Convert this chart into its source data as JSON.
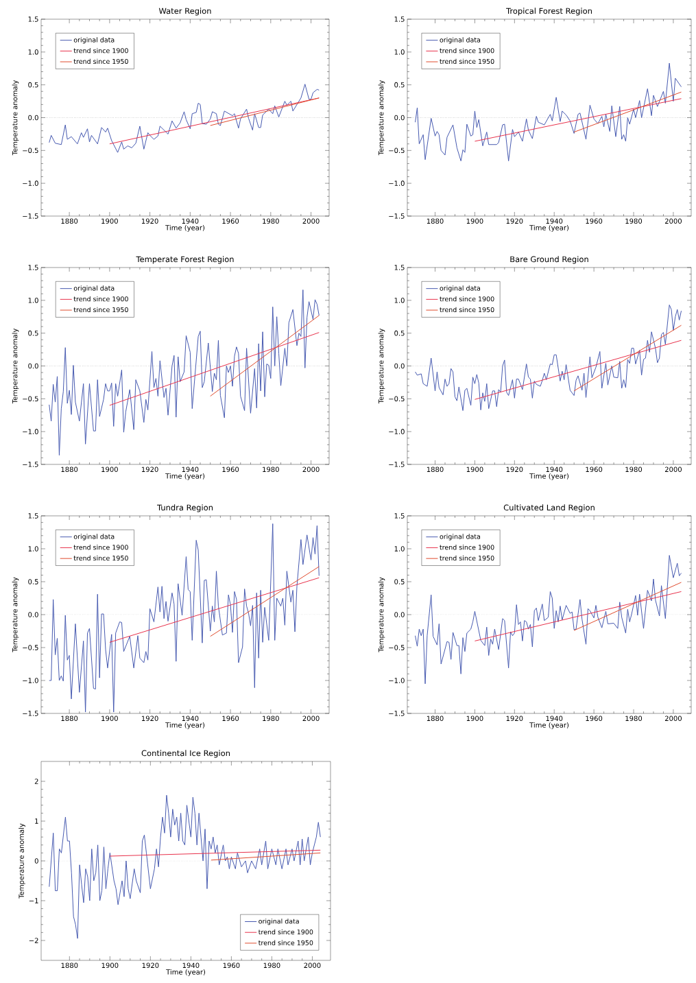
{
  "chart_data": [
    {
      "type": "line",
      "title": "Water Region",
      "xlabel": "Time (year)",
      "ylabel": "Temperature anomaly",
      "xlim": [
        1866,
        2009
      ],
      "ylim": [
        -1.5,
        1.5
      ],
      "xticks": [
        1880,
        1900,
        1920,
        1940,
        1960,
        1980,
        2000
      ],
      "yticks": [
        {
          "value": -1.5,
          "label": "−1.5"
        },
        {
          "value": -1,
          "label": "−1.0"
        },
        {
          "value": -0.5,
          "label": "−0.5"
        },
        {
          "value": 0,
          "label": "0.0"
        },
        {
          "value": 0.5,
          "label": "0.5"
        },
        {
          "value": 1,
          "label": "1.0"
        },
        {
          "value": 1.5,
          "label": "1.5"
        }
      ],
      "legend": "top left",
      "ref_lines": [
        {
          "axis": "y",
          "value": 0,
          "line_style": "dotted"
        }
      ],
      "series": [
        {
          "name": "original data",
          "color": "#4659b0",
          "x": [
            1870,
            1871,
            1873,
            1876,
            1878,
            1879,
            1881,
            1884,
            1886,
            1887,
            1889,
            1890,
            1891,
            1894,
            1896,
            1898,
            1899,
            1901,
            1904,
            1906,
            1907,
            1909,
            1911,
            1913,
            1915,
            1917,
            1919,
            1920,
            1922,
            1924,
            1925,
            1929,
            1931,
            1933,
            1935,
            1937,
            1938,
            1940,
            1941,
            1943,
            1944,
            1945,
            1946,
            1948,
            1950,
            1951,
            1953,
            1954,
            1955,
            1957,
            1961,
            1962,
            1964,
            1965,
            1968,
            1969,
            1971,
            1972,
            1974,
            1975,
            1976,
            1979,
            1981,
            1982,
            1984,
            1987,
            1988,
            1990,
            1991,
            1995,
            1997,
            1999,
            2000,
            2001,
            2003,
            2004
          ],
          "values": [
            -0.38,
            -0.27,
            -0.39,
            -0.41,
            -0.11,
            -0.33,
            -0.29,
            -0.4,
            -0.23,
            -0.3,
            -0.17,
            -0.37,
            -0.27,
            -0.4,
            -0.15,
            -0.22,
            -0.16,
            -0.35,
            -0.53,
            -0.37,
            -0.48,
            -0.43,
            -0.46,
            -0.39,
            -0.13,
            -0.48,
            -0.23,
            -0.27,
            -0.33,
            -0.28,
            -0.13,
            -0.25,
            -0.05,
            -0.16,
            -0.08,
            0.09,
            -0.03,
            -0.17,
            0.06,
            0.08,
            0.22,
            0.2,
            -0.09,
            -0.1,
            -0.02,
            0.09,
            0.06,
            -0.1,
            -0.12,
            0.1,
            0.03,
            0.06,
            -0.16,
            -0.02,
            0.13,
            -0.01,
            -0.19,
            0.06,
            -0.15,
            -0.15,
            0.04,
            0.13,
            0.06,
            0.18,
            0.01,
            0.25,
            0.19,
            0.25,
            0.1,
            0.3,
            0.51,
            0.28,
            0.28,
            0.38,
            0.43,
            0.42
          ]
        },
        {
          "name": "trend since 1900",
          "color": "#e8304a",
          "x": [
            1900,
            2004
          ],
          "values": [
            -0.4,
            0.3
          ]
        },
        {
          "name": "trend since 1950",
          "color": "#e04a2c",
          "x": [
            1950,
            2004
          ],
          "values": [
            -0.12,
            0.3
          ]
        }
      ]
    },
    {
      "type": "line",
      "title": "Tropical Forest Region",
      "xlabel": "Time (year)",
      "ylabel": "Temperature anomaly",
      "xlim": [
        1866,
        2009
      ],
      "ylim": [
        -1.5,
        1.5
      ],
      "xticks": [
        1880,
        1900,
        1920,
        1940,
        1960,
        1980,
        2000
      ],
      "yticks": [
        {
          "value": -1.5,
          "label": "−1.5"
        },
        {
          "value": -1,
          "label": "−1.0"
        },
        {
          "value": -0.5,
          "label": "−0.5"
        },
        {
          "value": 0,
          "label": "0.0"
        },
        {
          "value": 0.5,
          "label": "0.5"
        },
        {
          "value": 1,
          "label": "1.0"
        },
        {
          "value": 1.5,
          "label": "1.5"
        }
      ],
      "legend": "top left",
      "ref_lines": [
        {
          "axis": "y",
          "value": 0,
          "line_style": "dotted"
        }
      ],
      "series": [
        {
          "name": "original data",
          "color": "#4659b0",
          "x": [
            1870,
            1871,
            1872,
            1874,
            1875,
            1878,
            1880,
            1881,
            1882,
            1883,
            1885,
            1886,
            1889,
            1891,
            1893,
            1894,
            1895,
            1896,
            1898,
            1899,
            1900,
            1901,
            1902,
            1904,
            1906,
            1907,
            1911,
            1912,
            1914,
            1915,
            1917,
            1919,
            1920,
            1922,
            1924,
            1926,
            1927,
            1929,
            1931,
            1932,
            1935,
            1938,
            1939,
            1941,
            1943,
            1944,
            1946,
            1948,
            1950,
            1952,
            1953,
            1956,
            1958,
            1960,
            1962,
            1964,
            1965,
            1966,
            1968,
            1969,
            1971,
            1973,
            1974,
            1975,
            1976,
            1977,
            1978,
            1980,
            1981,
            1983,
            1984,
            1987,
            1989,
            1990,
            1992,
            1995,
            1996,
            1998,
            2000,
            2001,
            2004
          ],
          "values": [
            -0.07,
            0.15,
            -0.4,
            -0.26,
            -0.64,
            -0.01,
            -0.28,
            -0.21,
            -0.26,
            -0.5,
            -0.57,
            -0.3,
            -0.11,
            -0.46,
            -0.66,
            -0.49,
            -0.53,
            -0.1,
            -0.28,
            -0.26,
            0.1,
            -0.15,
            -0.03,
            -0.43,
            -0.22,
            -0.41,
            -0.41,
            -0.38,
            -0.11,
            -0.1,
            -0.66,
            -0.18,
            -0.29,
            -0.22,
            -0.36,
            -0.02,
            -0.19,
            -0.32,
            0.02,
            -0.07,
            -0.11,
            0.05,
            -0.05,
            0.31,
            -0.06,
            0.1,
            0.04,
            -0.05,
            -0.24,
            0.05,
            0.07,
            -0.33,
            0.19,
            -0.02,
            -0.09,
            0.02,
            -0.14,
            0.05,
            -0.21,
            0.18,
            -0.29,
            0.17,
            -0.33,
            -0.26,
            -0.36,
            0.0,
            -0.1,
            0.13,
            0.0,
            0.26,
            0.0,
            0.44,
            0.03,
            0.34,
            0.17,
            0.4,
            0.22,
            0.83,
            0.25,
            0.6,
            0.47
          ]
        },
        {
          "name": "trend since 1900",
          "color": "#e8304a",
          "x": [
            1900,
            2004
          ],
          "values": [
            -0.36,
            0.29
          ]
        },
        {
          "name": "trend since 1950",
          "color": "#e04a2c",
          "x": [
            1950,
            2004
          ],
          "values": [
            -0.22,
            0.39
          ]
        }
      ]
    },
    {
      "type": "line",
      "title": "Temperate Forest Region",
      "xlabel": "Time (year)",
      "ylabel": "Temperature anomaly",
      "xlim": [
        1866,
        2009
      ],
      "ylim": [
        -1.5,
        1.5
      ],
      "xticks": [
        1880,
        1900,
        1920,
        1940,
        1960,
        1980,
        2000
      ],
      "yticks": [
        {
          "value": -1.5,
          "label": "−1.5"
        },
        {
          "value": -1,
          "label": "−1.0"
        },
        {
          "value": -0.5,
          "label": "−0.5"
        },
        {
          "value": 0,
          "label": "0.0"
        },
        {
          "value": 0.5,
          "label": "0.5"
        },
        {
          "value": 1,
          "label": "1.0"
        },
        {
          "value": 1.5,
          "label": "1.5"
        }
      ],
      "legend": "top left",
      "ref_lines": [
        {
          "axis": "y",
          "value": 0,
          "line_style": "dotted"
        }
      ],
      "series": [
        {
          "name": "original data",
          "color": "#4659b0",
          "x": [
            1870,
            1871,
            1872,
            1873,
            1874,
            1875,
            1876,
            1877,
            1878,
            1879,
            1880,
            1881,
            1882,
            1883,
            1885,
            1887,
            1888,
            1890,
            1892,
            1893,
            1894,
            1895,
            1897,
            1898,
            1899,
            1900,
            1901,
            1902,
            1903,
            1904,
            1906,
            1907,
            1908,
            1910,
            1912,
            1913,
            1915,
            1917,
            1918,
            1919,
            1921,
            1922,
            1923,
            1924,
            1925,
            1927,
            1928,
            1929,
            1931,
            1932,
            1933,
            1934,
            1935,
            1937,
            1938,
            1940,
            1941,
            1944,
            1945,
            1946,
            1947,
            1949,
            1951,
            1952,
            1953,
            1954,
            1955,
            1957,
            1958,
            1959,
            1960,
            1961,
            1962,
            1963,
            1964,
            1965,
            1967,
            1968,
            1970,
            1972,
            1973,
            1974,
            1975,
            1976,
            1977,
            1978,
            1979,
            1980,
            1981,
            1982,
            1983,
            1984,
            1985,
            1987,
            1988,
            1989,
            1991,
            1993,
            1994,
            1995,
            1996,
            1997,
            1998,
            1999,
            2001,
            2002,
            2003,
            2004
          ],
          "values": [
            -0.59,
            -0.84,
            -0.28,
            -0.55,
            -0.16,
            -1.36,
            -0.65,
            -0.39,
            0.28,
            -0.57,
            -0.37,
            -0.74,
            0.01,
            -0.55,
            -0.84,
            -0.27,
            -1.19,
            -0.27,
            -0.99,
            -0.99,
            -0.21,
            -0.77,
            -0.51,
            -0.27,
            -0.38,
            -0.38,
            -0.26,
            -0.92,
            -0.27,
            -0.46,
            -0.06,
            -1.01,
            -0.7,
            -0.36,
            -0.97,
            -0.21,
            -0.38,
            -0.86,
            -0.51,
            -0.67,
            0.22,
            -0.33,
            -0.19,
            -0.46,
            0.08,
            -0.48,
            -0.34,
            -0.75,
            0.0,
            0.16,
            -0.78,
            0.14,
            -0.24,
            -0.09,
            0.46,
            0.21,
            -0.65,
            0.45,
            0.53,
            -0.33,
            -0.24,
            0.35,
            -0.39,
            -0.11,
            -0.21,
            0.39,
            -0.45,
            -0.79,
            0.0,
            -0.1,
            0.0,
            -0.31,
            0.15,
            0.29,
            0.19,
            -0.46,
            -0.68,
            0.27,
            -0.72,
            -0.04,
            -0.64,
            0.34,
            -0.38,
            0.52,
            -0.47,
            0.03,
            0.01,
            -0.19,
            0.9,
            0.0,
            0.75,
            0.19,
            -0.3,
            0.27,
            0.0,
            0.66,
            0.86,
            0.31,
            0.5,
            0.45,
            1.16,
            -0.03,
            0.74,
            0.98,
            0.71,
            1.01,
            0.94,
            0.77
          ]
        },
        {
          "name": "trend since 1900",
          "color": "#e8304a",
          "x": [
            1900,
            2004
          ],
          "values": [
            -0.6,
            0.51
          ]
        },
        {
          "name": "trend since 1950",
          "color": "#e04a2c",
          "x": [
            1950,
            2004
          ],
          "values": [
            -0.46,
            0.77
          ]
        }
      ]
    },
    {
      "type": "line",
      "title": "Bare Ground Region",
      "xlabel": "Time (year)",
      "ylabel": "Temperature anomaly",
      "xlim": [
        1866,
        2009
      ],
      "ylim": [
        -1.5,
        1.5
      ],
      "xticks": [
        1880,
        1900,
        1920,
        1940,
        1960,
        1980,
        2000
      ],
      "yticks": [
        {
          "value": -1.5,
          "label": "−1.5"
        },
        {
          "value": -1,
          "label": "−1.0"
        },
        {
          "value": -0.5,
          "label": "−0.5"
        },
        {
          "value": 0,
          "label": "0.0"
        },
        {
          "value": 0.5,
          "label": "0.5"
        },
        {
          "value": 1,
          "label": "1.0"
        },
        {
          "value": 1.5,
          "label": "1.5"
        }
      ],
      "legend": "top left",
      "ref_lines": [
        {
          "axis": "y",
          "value": 0,
          "line_style": "dotted"
        }
      ],
      "series": [
        {
          "name": "original data",
          "color": "#4659b0",
          "x": [
            1870,
            1871,
            1873,
            1874,
            1876,
            1878,
            1880,
            1881,
            1882,
            1884,
            1885,
            1886,
            1887,
            1888,
            1889,
            1890,
            1891,
            1892,
            1894,
            1895,
            1896,
            1898,
            1899,
            1900,
            1901,
            1902,
            1903,
            1904,
            1905,
            1906,
            1907,
            1909,
            1910,
            1911,
            1912,
            1913,
            1914,
            1915,
            1916,
            1917,
            1919,
            1920,
            1921,
            1922,
            1924,
            1926,
            1927,
            1928,
            1929,
            1930,
            1931,
            1933,
            1934,
            1935,
            1936,
            1938,
            1939,
            1940,
            1941,
            1943,
            1944,
            1945,
            1946,
            1948,
            1950,
            1951,
            1952,
            1954,
            1955,
            1956,
            1958,
            1959,
            1961,
            1963,
            1964,
            1966,
            1967,
            1969,
            1970,
            1972,
            1973,
            1974,
            1975,
            1976,
            1977,
            1978,
            1979,
            1980,
            1981,
            1983,
            1984,
            1985,
            1986,
            1987,
            1988,
            1989,
            1991,
            1992,
            1993,
            1994,
            1995,
            1996,
            1998,
            1999,
            2000,
            2001,
            2002,
            2003,
            2004
          ],
          "values": [
            -0.09,
            -0.14,
            -0.12,
            -0.27,
            -0.31,
            0.12,
            -0.38,
            -0.09,
            -0.33,
            -0.44,
            -0.2,
            -0.31,
            -0.27,
            -0.04,
            -0.09,
            -0.47,
            -0.53,
            -0.32,
            -0.68,
            -0.37,
            -0.34,
            -0.6,
            -0.17,
            -0.27,
            -0.13,
            -0.26,
            -0.67,
            -0.41,
            -0.54,
            -0.27,
            -0.65,
            -0.38,
            -0.38,
            -0.62,
            -0.36,
            -0.4,
            0.0,
            0.09,
            -0.4,
            -0.45,
            -0.21,
            -0.49,
            -0.2,
            -0.2,
            -0.36,
            0.03,
            -0.17,
            -0.2,
            -0.49,
            -0.23,
            -0.28,
            -0.31,
            -0.22,
            -0.11,
            -0.21,
            0.03,
            0.02,
            0.17,
            0.17,
            -0.23,
            -0.08,
            -0.21,
            0.02,
            -0.37,
            -0.45,
            -0.22,
            -0.15,
            -0.37,
            -0.11,
            -0.48,
            0.14,
            -0.18,
            -0.02,
            0.22,
            -0.34,
            0.04,
            -0.29,
            0.0,
            -0.17,
            -0.18,
            0.07,
            -0.34,
            -0.21,
            -0.33,
            0.1,
            0.04,
            0.27,
            0.27,
            0.03,
            0.24,
            -0.14,
            0.1,
            0.12,
            0.39,
            0.21,
            0.52,
            0.27,
            0.05,
            0.12,
            0.48,
            0.51,
            0.33,
            0.93,
            0.86,
            0.54,
            0.75,
            0.86,
            0.7,
            0.84
          ]
        },
        {
          "name": "trend since 1900",
          "color": "#e8304a",
          "x": [
            1900,
            2004
          ],
          "values": [
            -0.51,
            0.39
          ]
        },
        {
          "name": "trend since 1950",
          "color": "#e04a2c",
          "x": [
            1950,
            2004
          ],
          "values": [
            -0.38,
            0.62
          ]
        }
      ]
    },
    {
      "type": "line",
      "title": "Tundra Region",
      "xlabel": "Time (year)",
      "ylabel": "Temperature anomaly",
      "xlim": [
        1866,
        2009
      ],
      "ylim": [
        -1.5,
        1.5
      ],
      "xticks": [
        1880,
        1900,
        1920,
        1940,
        1960,
        1980,
        2000
      ],
      "yticks": [
        {
          "value": -1.5,
          "label": "−1.5"
        },
        {
          "value": -1,
          "label": "−1.0"
        },
        {
          "value": -0.5,
          "label": "−0.5"
        },
        {
          "value": 0,
          "label": "0.0"
        },
        {
          "value": 0.5,
          "label": "0.5"
        },
        {
          "value": 1,
          "label": "1.0"
        },
        {
          "value": 1.5,
          "label": "1.5"
        }
      ],
      "legend": "top left",
      "ref_lines": [
        {
          "axis": "y",
          "value": 0,
          "line_style": "dotted"
        }
      ],
      "series": [
        {
          "name": "original data",
          "color": "#4659b0",
          "x": [
            1870,
            1871,
            1872,
            1873,
            1874,
            1875,
            1876,
            1877,
            1878,
            1879,
            1880,
            1881,
            1883,
            1885,
            1887,
            1888,
            1889,
            1890,
            1892,
            1893,
            1894,
            1895,
            1896,
            1897,
            1898,
            1899,
            1901,
            1902,
            1903,
            1905,
            1906,
            1907,
            1910,
            1912,
            1914,
            1915,
            1917,
            1918,
            1919,
            1920,
            1922,
            1924,
            1925,
            1926,
            1927,
            1928,
            1929,
            1931,
            1932,
            1933,
            1934,
            1936,
            1938,
            1939,
            1940,
            1941,
            1943,
            1944,
            1946,
            1947,
            1948,
            1950,
            1951,
            1952,
            1953,
            1954,
            1956,
            1958,
            1959,
            1960,
            1961,
            1962,
            1963,
            1964,
            1966,
            1967,
            1968,
            1969,
            1970,
            1971,
            1972,
            1973,
            1974,
            1975,
            1976,
            1977,
            1979,
            1981,
            1982,
            1983,
            1985,
            1986,
            1987,
            1988,
            1990,
            1991,
            1992,
            1993,
            1995,
            1996,
            1998,
            2000,
            2001,
            2002,
            2003,
            2004
          ],
          "values": [
            -1.0,
            -1.0,
            0.23,
            -0.61,
            -0.36,
            -1.0,
            -0.93,
            -1.01,
            -0.01,
            -0.69,
            -0.62,
            -1.28,
            -0.14,
            -1.18,
            -0.4,
            -1.48,
            -0.28,
            -0.21,
            -1.12,
            -1.13,
            0.31,
            -0.96,
            0.01,
            0.01,
            -0.53,
            -0.81,
            -0.3,
            -1.48,
            -0.28,
            -0.11,
            -0.12,
            -0.56,
            -0.33,
            -0.81,
            -0.32,
            -0.66,
            -0.73,
            -0.56,
            -0.69,
            0.09,
            -0.11,
            0.42,
            0.04,
            0.43,
            -0.06,
            0.2,
            -0.1,
            0.33,
            0.16,
            -0.71,
            0.47,
            -0.01,
            0.88,
            0.38,
            0.35,
            -0.39,
            1.13,
            0.98,
            -0.43,
            0.52,
            0.53,
            -0.25,
            0.13,
            -0.11,
            0.66,
            0.13,
            -0.31,
            -0.28,
            0.3,
            0.15,
            -0.27,
            0.35,
            0.23,
            -0.73,
            -0.49,
            0.39,
            0.13,
            0.02,
            -0.17,
            0.14,
            -1.11,
            0.33,
            -0.66,
            0.37,
            -0.42,
            0.11,
            -0.39,
            1.38,
            -0.39,
            0.25,
            0.13,
            0.25,
            -0.16,
            0.66,
            0.19,
            0.37,
            -0.26,
            0.43,
            1.14,
            0.76,
            1.21,
            0.83,
            1.17,
            0.92,
            1.35,
            0.59
          ]
        },
        {
          "name": "trend since 1900",
          "color": "#e8304a",
          "x": [
            1900,
            2004
          ],
          "values": [
            -0.42,
            0.56
          ]
        },
        {
          "name": "trend since 1950",
          "color": "#e04a2c",
          "x": [
            1950,
            2004
          ],
          "values": [
            -0.33,
            0.73
          ]
        }
      ]
    },
    {
      "type": "line",
      "title": "Cultivated Land Region",
      "xlabel": "Time (year)",
      "ylabel": "Temperature anomaly",
      "xlim": [
        1866,
        2009
      ],
      "ylim": [
        -1.5,
        1.5
      ],
      "xticks": [
        1880,
        1900,
        1920,
        1940,
        1960,
        1980,
        2000
      ],
      "yticks": [
        {
          "value": -1.5,
          "label": "−1.5"
        },
        {
          "value": -1,
          "label": "−1.0"
        },
        {
          "value": -0.5,
          "label": "−0.5"
        },
        {
          "value": 0,
          "label": "0.0"
        },
        {
          "value": 0.5,
          "label": "0.5"
        },
        {
          "value": 1,
          "label": "1.0"
        },
        {
          "value": 1.5,
          "label": "1.5"
        }
      ],
      "legend": "top left",
      "ref_lines": [
        {
          "axis": "y",
          "value": 0,
          "line_style": "dotted"
        }
      ],
      "series": [
        {
          "name": "original data",
          "color": "#4659b0",
          "x": [
            1870,
            1871,
            1872,
            1873,
            1874,
            1875,
            1876,
            1878,
            1879,
            1881,
            1882,
            1883,
            1886,
            1887,
            1888,
            1889,
            1891,
            1892,
            1893,
            1894,
            1895,
            1896,
            1898,
            1899,
            1900,
            1903,
            1905,
            1906,
            1907,
            1908,
            1909,
            1910,
            1912,
            1914,
            1915,
            1917,
            1918,
            1919,
            1920,
            1921,
            1922,
            1923,
            1924,
            1925,
            1926,
            1927,
            1928,
            1929,
            1930,
            1931,
            1932,
            1934,
            1935,
            1937,
            1938,
            1939,
            1940,
            1941,
            1942,
            1943,
            1944,
            1946,
            1948,
            1949,
            1950,
            1951,
            1953,
            1954,
            1956,
            1957,
            1958,
            1960,
            1961,
            1962,
            1964,
            1966,
            1967,
            1970,
            1972,
            1973,
            1974,
            1976,
            1977,
            1978,
            1979,
            1981,
            1982,
            1983,
            1985,
            1987,
            1989,
            1990,
            1991,
            1993,
            1994,
            1996,
            1998,
            2000,
            2002,
            2003,
            2004
          ],
          "values": [
            -0.32,
            -0.48,
            -0.22,
            -0.32,
            -0.22,
            -1.05,
            -0.32,
            0.3,
            -0.33,
            -0.46,
            -0.14,
            -0.75,
            -0.41,
            -0.42,
            -0.68,
            -0.27,
            -0.47,
            -0.47,
            -0.9,
            -0.35,
            -0.56,
            -0.28,
            -0.22,
            -0.11,
            0.05,
            -0.39,
            -0.47,
            -0.19,
            -0.62,
            -0.37,
            -0.45,
            -0.22,
            -0.53,
            -0.06,
            -0.09,
            -0.81,
            -0.26,
            -0.32,
            -0.28,
            0.15,
            -0.15,
            -0.11,
            -0.4,
            -0.09,
            -0.11,
            -0.22,
            -0.15,
            -0.49,
            0.06,
            0.1,
            -0.09,
            0.16,
            -0.09,
            -0.04,
            0.35,
            0.25,
            -0.21,
            0.06,
            -0.11,
            0.13,
            -0.08,
            0.14,
            0.02,
            0.04,
            -0.23,
            -0.22,
            0.23,
            -0.07,
            -0.45,
            0.09,
            0.06,
            -0.05,
            0.14,
            -0.04,
            -0.2,
            0.05,
            -0.14,
            -0.13,
            -0.21,
            0.19,
            -0.04,
            -0.28,
            0.08,
            -0.11,
            0.01,
            0.29,
            -0.01,
            0.31,
            -0.21,
            0.37,
            0.21,
            0.54,
            0.22,
            -0.02,
            0.44,
            -0.06,
            0.9,
            0.56,
            0.78,
            0.59,
            0.63
          ]
        },
        {
          "name": "trend since 1900",
          "color": "#e8304a",
          "x": [
            1900,
            2004
          ],
          "values": [
            -0.4,
            0.35
          ]
        },
        {
          "name": "trend since 1950",
          "color": "#e04a2c",
          "x": [
            1950,
            2004
          ],
          "values": [
            -0.24,
            0.49
          ]
        }
      ]
    },
    {
      "type": "line",
      "title": "Continental Ice Region",
      "xlabel": "Time (year)",
      "ylabel": "Temperature anomaly",
      "xlim": [
        1866,
        2009
      ],
      "ylim": [
        -2.5,
        2.5
      ],
      "xticks": [
        1880,
        1900,
        1920,
        1940,
        1960,
        1980,
        2000
      ],
      "yticks": [
        {
          "value": -2,
          "label": "−2"
        },
        {
          "value": -1,
          "label": "−1"
        },
        0,
        1,
        2
      ],
      "legend": "bottom right",
      "ref_lines": [
        {
          "axis": "y",
          "value": 0,
          "line_style": "dotted"
        }
      ],
      "series": [
        {
          "name": "original data",
          "color": "#4659b0",
          "x": [
            1870,
            1872,
            1873,
            1874,
            1875,
            1876,
            1878,
            1879,
            1880,
            1881,
            1882,
            1883,
            1884,
            1885,
            1886,
            1887,
            1888,
            1889,
            1890,
            1891,
            1892,
            1893,
            1894,
            1895,
            1896,
            1897,
            1898,
            1899,
            1900,
            1902,
            1903,
            1904,
            1906,
            1907,
            1908,
            1909,
            1910,
            1912,
            1913,
            1915,
            1916,
            1917,
            1918,
            1920,
            1922,
            1923,
            1924,
            1925,
            1926,
            1927,
            1928,
            1929,
            1930,
            1931,
            1932,
            1933,
            1934,
            1935,
            1936,
            1937,
            1938,
            1940,
            1941,
            1942,
            1943,
            1944,
            1945,
            1946,
            1947,
            1948,
            1949,
            1950,
            1951,
            1952,
            1953,
            1954,
            1956,
            1957,
            1958,
            1959,
            1960,
            1962,
            1963,
            1965,
            1967,
            1968,
            1970,
            1972,
            1974,
            1975,
            1977,
            1978,
            1980,
            1982,
            1983,
            1985,
            1987,
            1988,
            1990,
            1991,
            1993,
            1994,
            1995,
            1996,
            1998,
            1999,
            2000,
            2002,
            2003,
            2004
          ],
          "values": [
            -0.65,
            0.7,
            -0.75,
            -0.75,
            0.3,
            0.2,
            1.1,
            0.5,
            0.5,
            -0.3,
            -1.4,
            -1.6,
            -1.95,
            -0.1,
            -0.6,
            -1.05,
            -0.2,
            -0.4,
            -1.0,
            0.3,
            -0.5,
            -0.3,
            0.4,
            -1.0,
            -0.75,
            0.35,
            -0.7,
            -0.2,
            0.2,
            -0.5,
            -0.7,
            -1.1,
            -0.5,
            -0.9,
            0.0,
            -0.7,
            -0.95,
            -0.2,
            -0.5,
            -0.8,
            0.5,
            0.65,
            0.2,
            -0.7,
            -0.2,
            0.3,
            -0.15,
            0.6,
            1.1,
            0.7,
            1.65,
            1.2,
            0.6,
            1.3,
            0.9,
            1.1,
            0.5,
            1.2,
            0.5,
            0.4,
            1.4,
            0.6,
            1.6,
            1.2,
            0.4,
            1.2,
            0.6,
            0.0,
            0.8,
            -0.7,
            0.5,
            0.3,
            0.6,
            0.2,
            0.4,
            -0.1,
            0.4,
            0.0,
            0.1,
            -0.2,
            0.1,
            -0.2,
            0.2,
            -0.15,
            0.0,
            -0.3,
            0.0,
            -0.2,
            0.3,
            -0.1,
            0.5,
            -0.2,
            0.3,
            -0.1,
            0.3,
            -0.2,
            0.3,
            -0.1,
            0.3,
            0.0,
            0.5,
            -0.1,
            0.55,
            0.0,
            0.6,
            -0.1,
            0.2,
            0.6,
            0.97,
            0.6
          ]
        },
        {
          "name": "trend since 1900",
          "color": "#e8304a",
          "x": [
            1900,
            2004
          ],
          "values": [
            0.12,
            0.27
          ]
        },
        {
          "name": "trend since 1950",
          "color": "#e04a2c",
          "x": [
            1950,
            2004
          ],
          "values": [
            0.02,
            0.2
          ]
        }
      ]
    }
  ]
}
